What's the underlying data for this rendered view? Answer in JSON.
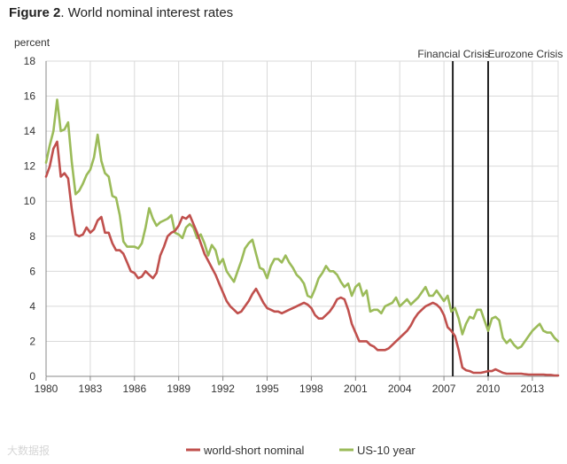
{
  "title": {
    "figure_number": "Figure 2",
    "separator": ".",
    "text": "World nominal interest rates"
  },
  "watermark": "大数据报",
  "chart_data": {
    "type": "line",
    "ylabel": "percent",
    "ylim": [
      0,
      18
    ],
    "xlim": [
      1980,
      2014.75
    ],
    "y_ticks": [
      0,
      2,
      4,
      6,
      8,
      10,
      12,
      14,
      16,
      18
    ],
    "x_ticks": [
      1980,
      1983,
      1986,
      1989,
      1992,
      1995,
      1998,
      2001,
      2004,
      2007,
      2010,
      2013
    ],
    "grid": true,
    "legend_position": "bottom-center",
    "events": [
      {
        "label": "Financial Crisis",
        "x": 2007.6
      },
      {
        "label": "Eurozone Crisis",
        "x": 2010
      }
    ],
    "colors": {
      "world": "#c0504d",
      "us": "#9bbb59",
      "event_line": "#222222",
      "grid": "#d9d9d9",
      "axis": "#888888"
    },
    "series": [
      {
        "name": "world-short nominal",
        "points": [
          [
            1980,
            11.4
          ],
          [
            1980.25,
            12.0
          ],
          [
            1980.5,
            13.0
          ],
          [
            1980.75,
            13.4
          ],
          [
            1981,
            11.4
          ],
          [
            1981.25,
            11.6
          ],
          [
            1981.5,
            11.3
          ],
          [
            1981.75,
            9.5
          ],
          [
            1982,
            8.1
          ],
          [
            1982.25,
            8.0
          ],
          [
            1982.5,
            8.1
          ],
          [
            1982.75,
            8.5
          ],
          [
            1983,
            8.2
          ],
          [
            1983.25,
            8.4
          ],
          [
            1983.5,
            8.9
          ],
          [
            1983.75,
            9.1
          ],
          [
            1984,
            8.2
          ],
          [
            1984.25,
            8.2
          ],
          [
            1984.5,
            7.6
          ],
          [
            1984.75,
            7.2
          ],
          [
            1985,
            7.2
          ],
          [
            1985.25,
            7.0
          ],
          [
            1985.5,
            6.5
          ],
          [
            1985.75,
            6.0
          ],
          [
            1986,
            5.9
          ],
          [
            1986.25,
            5.6
          ],
          [
            1986.5,
            5.7
          ],
          [
            1986.75,
            6.0
          ],
          [
            1987,
            5.8
          ],
          [
            1987.25,
            5.6
          ],
          [
            1987.5,
            5.9
          ],
          [
            1987.75,
            6.9
          ],
          [
            1988,
            7.4
          ],
          [
            1988.25,
            8.0
          ],
          [
            1988.5,
            8.2
          ],
          [
            1988.75,
            8.3
          ],
          [
            1989,
            8.6
          ],
          [
            1989.25,
            9.1
          ],
          [
            1989.5,
            9.0
          ],
          [
            1989.75,
            9.2
          ],
          [
            1990,
            8.7
          ],
          [
            1990.25,
            8.2
          ],
          [
            1990.5,
            7.6
          ],
          [
            1990.75,
            7.0
          ],
          [
            1991,
            6.6
          ],
          [
            1991.25,
            6.2
          ],
          [
            1991.5,
            5.8
          ],
          [
            1991.75,
            5.3
          ],
          [
            1992,
            4.8
          ],
          [
            1992.25,
            4.3
          ],
          [
            1992.5,
            4.0
          ],
          [
            1992.75,
            3.8
          ],
          [
            1993,
            3.6
          ],
          [
            1993.25,
            3.7
          ],
          [
            1993.5,
            4.0
          ],
          [
            1993.75,
            4.3
          ],
          [
            1994,
            4.7
          ],
          [
            1994.25,
            5.0
          ],
          [
            1994.5,
            4.6
          ],
          [
            1994.75,
            4.2
          ],
          [
            1995,
            3.9
          ],
          [
            1995.25,
            3.8
          ],
          [
            1995.5,
            3.7
          ],
          [
            1995.75,
            3.7
          ],
          [
            1996,
            3.6
          ],
          [
            1996.25,
            3.7
          ],
          [
            1996.5,
            3.8
          ],
          [
            1996.75,
            3.9
          ],
          [
            1997,
            4.0
          ],
          [
            1997.25,
            4.1
          ],
          [
            1997.5,
            4.2
          ],
          [
            1997.75,
            4.1
          ],
          [
            1998,
            3.9
          ],
          [
            1998.25,
            3.5
          ],
          [
            1998.5,
            3.3
          ],
          [
            1998.75,
            3.3
          ],
          [
            1999,
            3.5
          ],
          [
            1999.25,
            3.7
          ],
          [
            1999.5,
            4.0
          ],
          [
            1999.75,
            4.4
          ],
          [
            2000,
            4.5
          ],
          [
            2000.25,
            4.4
          ],
          [
            2000.5,
            3.8
          ],
          [
            2000.75,
            3.0
          ],
          [
            2001,
            2.5
          ],
          [
            2001.25,
            2.0
          ],
          [
            2001.5,
            2.0
          ],
          [
            2001.75,
            2.0
          ],
          [
            2002,
            1.8
          ],
          [
            2002.25,
            1.7
          ],
          [
            2002.5,
            1.5
          ],
          [
            2002.75,
            1.5
          ],
          [
            2003,
            1.5
          ],
          [
            2003.25,
            1.6
          ],
          [
            2003.5,
            1.8
          ],
          [
            2003.75,
            2.0
          ],
          [
            2004,
            2.2
          ],
          [
            2004.25,
            2.4
          ],
          [
            2004.5,
            2.6
          ],
          [
            2004.75,
            2.9
          ],
          [
            2005,
            3.3
          ],
          [
            2005.25,
            3.6
          ],
          [
            2005.5,
            3.8
          ],
          [
            2005.75,
            4.0
          ],
          [
            2006,
            4.1
          ],
          [
            2006.25,
            4.2
          ],
          [
            2006.5,
            4.1
          ],
          [
            2006.75,
            3.9
          ],
          [
            2007,
            3.5
          ],
          [
            2007.25,
            2.8
          ],
          [
            2007.5,
            2.6
          ],
          [
            2007.75,
            2.3
          ],
          [
            2008,
            1.5
          ],
          [
            2008.25,
            0.5
          ],
          [
            2008.5,
            0.35
          ],
          [
            2008.75,
            0.3
          ],
          [
            2009,
            0.2
          ],
          [
            2009.25,
            0.2
          ],
          [
            2009.5,
            0.2
          ],
          [
            2009.75,
            0.25
          ],
          [
            2010,
            0.3
          ],
          [
            2010.25,
            0.3
          ],
          [
            2010.5,
            0.4
          ],
          [
            2010.75,
            0.3
          ],
          [
            2011,
            0.2
          ],
          [
            2011.25,
            0.15
          ],
          [
            2011.5,
            0.15
          ],
          [
            2011.75,
            0.15
          ],
          [
            2012,
            0.15
          ],
          [
            2012.25,
            0.15
          ],
          [
            2012.5,
            0.12
          ],
          [
            2012.75,
            0.1
          ],
          [
            2013,
            0.1
          ],
          [
            2013.25,
            0.1
          ],
          [
            2013.5,
            0.1
          ],
          [
            2013.75,
            0.1
          ],
          [
            2014,
            0.08
          ],
          [
            2014.25,
            0.08
          ],
          [
            2014.5,
            0.05
          ],
          [
            2014.75,
            0.05
          ]
        ]
      },
      {
        "name": "US-10 year",
        "points": [
          [
            1980,
            12.2
          ],
          [
            1980.25,
            13.2
          ],
          [
            1980.5,
            14.0
          ],
          [
            1980.75,
            15.8
          ],
          [
            1981,
            14.0
          ],
          [
            1981.25,
            14.1
          ],
          [
            1981.5,
            14.5
          ],
          [
            1981.75,
            12.2
          ],
          [
            1982,
            10.4
          ],
          [
            1982.25,
            10.6
          ],
          [
            1982.5,
            11.0
          ],
          [
            1982.75,
            11.5
          ],
          [
            1983,
            11.8
          ],
          [
            1983.25,
            12.5
          ],
          [
            1983.5,
            13.8
          ],
          [
            1983.75,
            12.3
          ],
          [
            1984,
            11.6
          ],
          [
            1984.25,
            11.4
          ],
          [
            1984.5,
            10.3
          ],
          [
            1984.75,
            10.2
          ],
          [
            1985,
            9.2
          ],
          [
            1985.25,
            7.7
          ],
          [
            1985.5,
            7.4
          ],
          [
            1985.75,
            7.4
          ],
          [
            1986,
            7.4
          ],
          [
            1986.25,
            7.3
          ],
          [
            1986.5,
            7.6
          ],
          [
            1986.75,
            8.5
          ],
          [
            1987,
            9.6
          ],
          [
            1987.25,
            9.0
          ],
          [
            1987.5,
            8.6
          ],
          [
            1987.75,
            8.8
          ],
          [
            1988,
            8.9
          ],
          [
            1988.25,
            9.0
          ],
          [
            1988.5,
            9.2
          ],
          [
            1988.75,
            8.2
          ],
          [
            1989,
            8.1
          ],
          [
            1989.25,
            7.9
          ],
          [
            1989.5,
            8.5
          ],
          [
            1989.75,
            8.7
          ],
          [
            1990,
            8.5
          ],
          [
            1990.25,
            7.9
          ],
          [
            1990.5,
            8.1
          ],
          [
            1990.75,
            7.6
          ],
          [
            1991,
            6.9
          ],
          [
            1991.25,
            7.5
          ],
          [
            1991.5,
            7.2
          ],
          [
            1991.75,
            6.4
          ],
          [
            1992,
            6.7
          ],
          [
            1992.25,
            6.0
          ],
          [
            1992.5,
            5.7
          ],
          [
            1992.75,
            5.4
          ],
          [
            1993,
            6.0
          ],
          [
            1993.25,
            6.6
          ],
          [
            1993.5,
            7.3
          ],
          [
            1993.75,
            7.6
          ],
          [
            1994,
            7.8
          ],
          [
            1994.25,
            7.0
          ],
          [
            1994.5,
            6.2
          ],
          [
            1994.75,
            6.1
          ],
          [
            1995,
            5.6
          ],
          [
            1995.25,
            6.3
          ],
          [
            1995.5,
            6.7
          ],
          [
            1995.75,
            6.7
          ],
          [
            1996,
            6.5
          ],
          [
            1996.25,
            6.9
          ],
          [
            1996.5,
            6.5
          ],
          [
            1996.75,
            6.2
          ],
          [
            1997,
            5.8
          ],
          [
            1997.25,
            5.6
          ],
          [
            1997.5,
            5.3
          ],
          [
            1997.75,
            4.6
          ],
          [
            1998,
            4.5
          ],
          [
            1998.25,
            5.0
          ],
          [
            1998.5,
            5.6
          ],
          [
            1998.75,
            5.9
          ],
          [
            1999,
            6.3
          ],
          [
            1999.25,
            6.0
          ],
          [
            1999.5,
            6.0
          ],
          [
            1999.75,
            5.8
          ],
          [
            2000,
            5.4
          ],
          [
            2000.25,
            5.1
          ],
          [
            2000.5,
            5.3
          ],
          [
            2000.75,
            4.6
          ],
          [
            2001,
            5.1
          ],
          [
            2001.25,
            5.3
          ],
          [
            2001.5,
            4.6
          ],
          [
            2001.75,
            4.9
          ],
          [
            2002,
            3.7
          ],
          [
            2002.25,
            3.8
          ],
          [
            2002.5,
            3.8
          ],
          [
            2002.75,
            3.6
          ],
          [
            2003,
            4.0
          ],
          [
            2003.25,
            4.1
          ],
          [
            2003.5,
            4.2
          ],
          [
            2003.75,
            4.5
          ],
          [
            2004,
            4.0
          ],
          [
            2004.25,
            4.2
          ],
          [
            2004.5,
            4.4
          ],
          [
            2004.75,
            4.1
          ],
          [
            2005,
            4.3
          ],
          [
            2005.25,
            4.5
          ],
          [
            2005.5,
            4.8
          ],
          [
            2005.75,
            5.1
          ],
          [
            2006,
            4.6
          ],
          [
            2006.25,
            4.6
          ],
          [
            2006.5,
            4.9
          ],
          [
            2006.75,
            4.6
          ],
          [
            2007,
            4.3
          ],
          [
            2007.25,
            4.6
          ],
          [
            2007.5,
            3.7
          ],
          [
            2007.75,
            3.9
          ],
          [
            2008,
            3.3
          ],
          [
            2008.25,
            2.4
          ],
          [
            2008.5,
            3.0
          ],
          [
            2008.75,
            3.4
          ],
          [
            2009,
            3.3
          ],
          [
            2009.25,
            3.8
          ],
          [
            2009.5,
            3.8
          ],
          [
            2009.75,
            3.2
          ],
          [
            2010,
            2.6
          ],
          [
            2010.25,
            3.3
          ],
          [
            2010.5,
            3.4
          ],
          [
            2010.75,
            3.2
          ],
          [
            2011,
            2.2
          ],
          [
            2011.25,
            1.9
          ],
          [
            2011.5,
            2.1
          ],
          [
            2011.75,
            1.8
          ],
          [
            2012,
            1.6
          ],
          [
            2012.25,
            1.7
          ],
          [
            2012.5,
            2.0
          ],
          [
            2012.75,
            2.3
          ],
          [
            2013,
            2.6
          ],
          [
            2013.25,
            2.8
          ],
          [
            2013.5,
            3.0
          ],
          [
            2013.75,
            2.6
          ],
          [
            2014,
            2.5
          ],
          [
            2014.25,
            2.5
          ],
          [
            2014.5,
            2.2
          ],
          [
            2014.75,
            2.0
          ]
        ]
      }
    ]
  }
}
